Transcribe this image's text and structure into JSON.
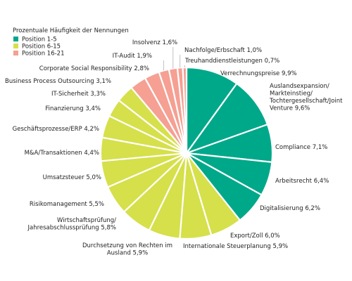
{
  "chart_data": {
    "type": "pie",
    "legend": {
      "title": "Prozentuale Häufigkeit der Nennungen",
      "placement": "top-left",
      "entries": [
        {
          "label": "Position 1-5",
          "color": "#00a88a"
        },
        {
          "label": "Position 6-15",
          "color": "#d6e04a"
        },
        {
          "label": "Position 16-21",
          "color": "#f5a093"
        }
      ]
    },
    "slices": [
      {
        "lines": [
          "Verrechnungspreise 9,9%"
        ],
        "value": 9.9,
        "group": 0
      },
      {
        "lines": [
          "Auslandsexpansion/",
          "Markteinstieg/",
          "Tochtergesellschaft/Joint",
          "Venture 9,6%"
        ],
        "value": 9.6,
        "group": 0
      },
      {
        "lines": [
          "Compliance 7,1%"
        ],
        "value": 7.1,
        "group": 0
      },
      {
        "lines": [
          "Arbeitsrecht 6,4%"
        ],
        "value": 6.4,
        "group": 0
      },
      {
        "lines": [
          "Digitalisierung 6,2%"
        ],
        "value": 6.2,
        "group": 0
      },
      {
        "lines": [
          "Export/Zoll 6,0%"
        ],
        "value": 6.0,
        "group": 1
      },
      {
        "lines": [
          "Internationale Steuerplanung 5,9%"
        ],
        "value": 5.9,
        "group": 1
      },
      {
        "lines": [
          "Durchsetzung von Rechten im",
          "Ausland 5,9%"
        ],
        "value": 5.9,
        "group": 1
      },
      {
        "lines": [
          "Wirtschaftsprüfung/",
          "Jahresabschlussprüfung 5,8%"
        ],
        "value": 5.8,
        "group": 1
      },
      {
        "lines": [
          "Risikomanagement 5,5%"
        ],
        "value": 5.5,
        "group": 1
      },
      {
        "lines": [
          "Umsatzsteuer 5,0%"
        ],
        "value": 5.0,
        "group": 1
      },
      {
        "lines": [
          "M&A/Transaktionen 4,4%"
        ],
        "value": 4.4,
        "group": 1
      },
      {
        "lines": [
          "Geschäftsprozesse/ERP 4,2%"
        ],
        "value": 4.2,
        "group": 1
      },
      {
        "lines": [
          "Finanzierung 3,4%"
        ],
        "value": 3.4,
        "group": 1
      },
      {
        "lines": [
          "IT-Sicherheit 3,3%"
        ],
        "value": 3.3,
        "group": 1
      },
      {
        "lines": [
          "Business Process Outsourcing 3,1%"
        ],
        "value": 3.1,
        "group": 2
      },
      {
        "lines": [
          "Corporate Social Responsibility 2,8%"
        ],
        "value": 2.8,
        "group": 2
      },
      {
        "lines": [
          "IT-Audit 1,9%"
        ],
        "value": 1.9,
        "group": 2
      },
      {
        "lines": [
          "Insolvenz 1,6%"
        ],
        "value": 1.6,
        "group": 2
      },
      {
        "lines": [
          "Nachfolge/Erbschaft 1,0%"
        ],
        "value": 1.0,
        "group": 2
      },
      {
        "lines": [
          "Treuhanddienstleistungen 0,7%"
        ],
        "value": 0.7,
        "group": 2
      }
    ]
  }
}
